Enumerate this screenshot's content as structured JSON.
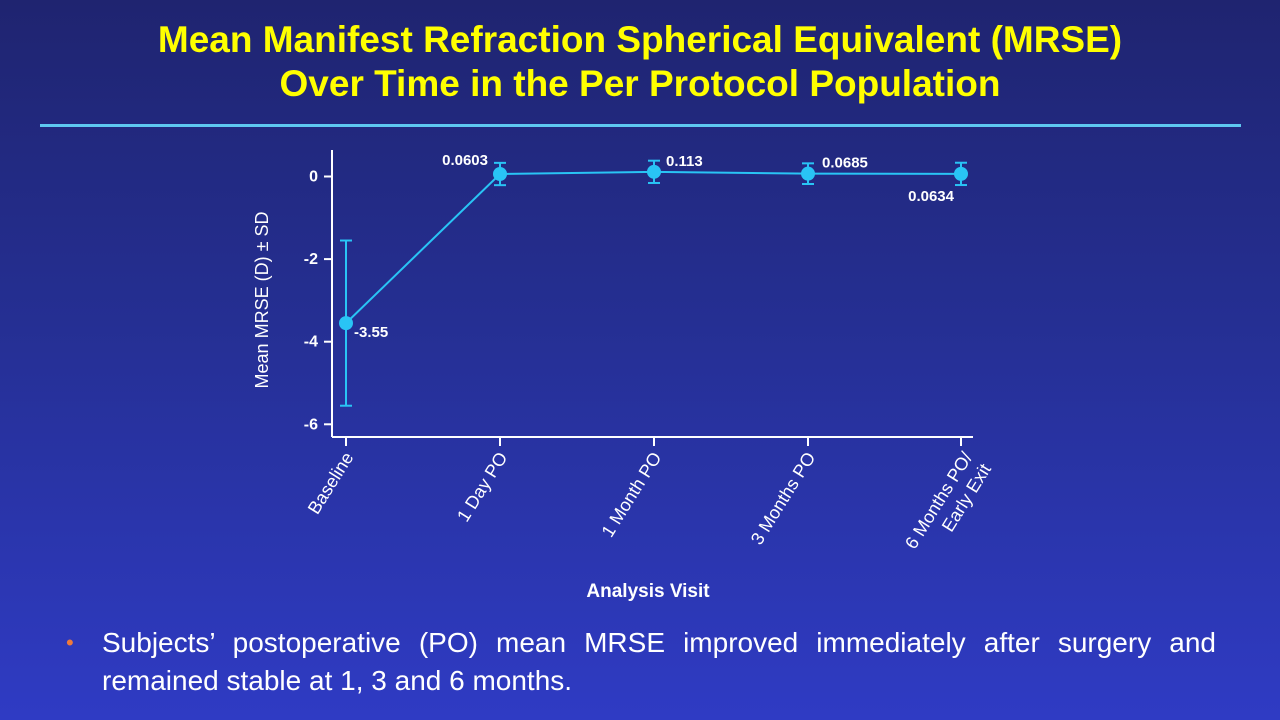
{
  "slide": {
    "title_line1": "Mean Manifest Refraction Spherical Equivalent (MRSE)",
    "title_line2": "Over Time in the Per Protocol Population",
    "bullets": [
      "Subjects’ postoperative (PO) mean MRSE improved immediately after surgery and remained stable at 1, 3 and 6 months."
    ],
    "colors": {
      "title": "#ffff00",
      "rule": "#5ec8f0",
      "series": "#29c4f5",
      "bullet": "#ee7a3a"
    }
  },
  "chart_data": {
    "type": "line",
    "title": "",
    "xlabel": "Analysis Visit",
    "ylabel": "Mean MRSE (D) ± SD",
    "ylim": [
      -6.5,
      0.5
    ],
    "yticks": [
      0,
      -2,
      -4,
      -6
    ],
    "ytick_labels": [
      "0",
      "-2",
      "-4",
      "-6"
    ],
    "grid": false,
    "legend": "none",
    "categories": [
      [
        "Baseline"
      ],
      [
        "1 Day PO"
      ],
      [
        "1 Month PO"
      ],
      [
        "3 Months PO"
      ],
      [
        "6 Months PO/",
        "Early Exit"
      ]
    ],
    "series": [
      {
        "values": [
          -3.55,
          0.0603,
          0.113,
          0.0685,
          0.0634
        ],
        "labels": [
          "-3.55",
          "0.0603",
          "0.113",
          "0.0685",
          "0.0634"
        ],
        "sd": [
          2.0,
          0.27,
          0.27,
          0.25,
          0.27
        ]
      }
    ]
  }
}
